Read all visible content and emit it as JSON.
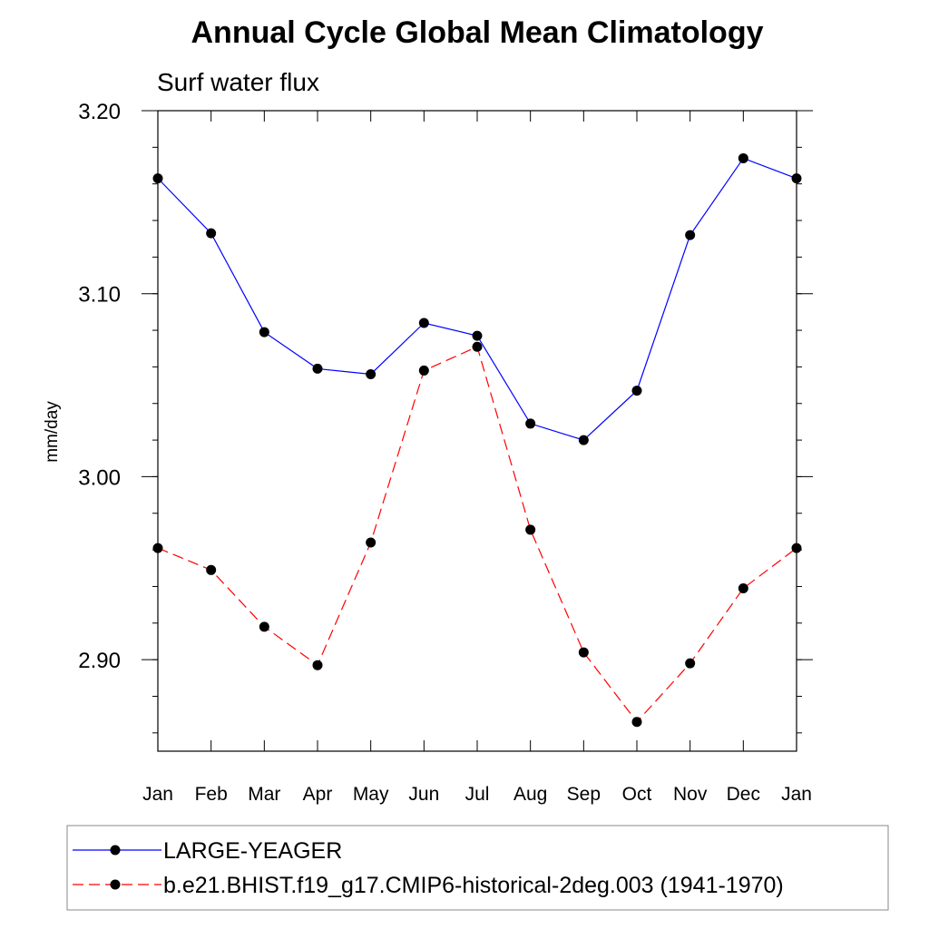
{
  "chart_data": {
    "type": "line",
    "title": "Annual Cycle Global Mean Climatology",
    "subtitle": "Surf water flux",
    "xlabel": "",
    "ylabel": "mm/day",
    "categories": [
      "Jan",
      "Feb",
      "Mar",
      "Apr",
      "May",
      "Jun",
      "Jul",
      "Aug",
      "Sep",
      "Oct",
      "Nov",
      "Dec",
      "Jan"
    ],
    "ylim": [
      2.85,
      3.2
    ],
    "yticks": [
      2.9,
      3.0,
      3.1,
      3.2
    ],
    "ytick_labels": [
      "2.90",
      "3.00",
      "3.10",
      "3.20"
    ],
    "grid": false,
    "legend_position": "bottom",
    "series": [
      {
        "name": "LARGE-YEAGER",
        "color": "#0000ff",
        "dash": "solid",
        "marker": "circle",
        "values": [
          3.163,
          3.133,
          3.079,
          3.059,
          3.056,
          3.084,
          3.077,
          3.029,
          3.02,
          3.047,
          3.132,
          3.174,
          3.163
        ]
      },
      {
        "name": "b.e21.BHIST.f19_g17.CMIP6-historical-2deg.003 (1941-1970)",
        "color": "#ff0000",
        "dash": "dashed",
        "marker": "circle",
        "values": [
          2.961,
          2.949,
          2.918,
          2.897,
          2.964,
          3.058,
          3.071,
          2.971,
          2.904,
          2.866,
          2.898,
          2.939,
          2.961
        ]
      }
    ]
  }
}
